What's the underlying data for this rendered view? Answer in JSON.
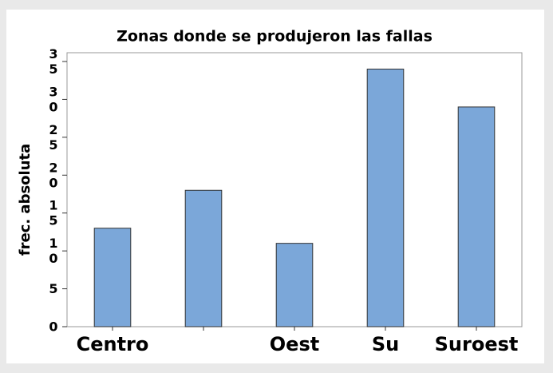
{
  "chart_data": {
    "type": "bar",
    "title": "Zonas donde se produjeron las fallas",
    "y_label": "frec. absoluta",
    "categories": [
      "Centro",
      null,
      "Oest",
      "Su",
      "Suroest"
    ],
    "values": [
      13,
      18,
      11,
      34,
      29
    ],
    "color": "#7ba7d9",
    "ylim": [
      0,
      35
    ],
    "yticks": [
      0,
      5,
      10,
      15,
      20,
      25,
      30,
      35
    ],
    "grid": false
  }
}
